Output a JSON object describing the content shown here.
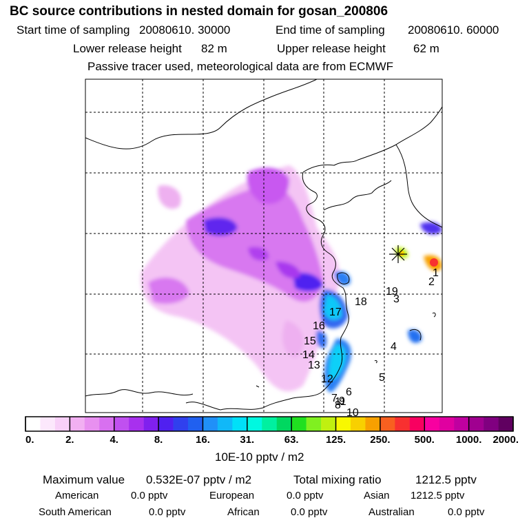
{
  "title": "BC  source contributions in nested domain for gosan_200806",
  "header": {
    "start_label": "Start time of sampling",
    "start_value": "20080610. 30000",
    "end_label": "End time of sampling",
    "end_value": "20080610. 60000",
    "lower_label": "Lower release height",
    "lower_value": "82 m",
    "upper_label": "Upper release height",
    "upper_value": "62 m",
    "tracer_note": "Passive tracer used, meteorological data are from ECMWF"
  },
  "map": {
    "receptor_marker": "star-icon",
    "region_labels": [
      "1",
      "2",
      "3",
      "4",
      "5",
      "6",
      "7",
      "8",
      "9",
      "10",
      "11",
      "12",
      "13",
      "14",
      "15",
      "16",
      "17",
      "18",
      "19"
    ]
  },
  "colorbar": {
    "colors": [
      "#ffffff",
      "#fce8fc",
      "#f8d0f8",
      "#f2b0f2",
      "#e890f0",
      "#d870f0",
      "#c050f0",
      "#a830ee",
      "#8020ee",
      "#5020f0",
      "#3040ee",
      "#2060f0",
      "#2090f8",
      "#10b8f8",
      "#00e0f8",
      "#00f8e0",
      "#00f0a0",
      "#00d860",
      "#20e020",
      "#80f020",
      "#c0f010",
      "#f8f800",
      "#f8d000",
      "#f8a000",
      "#f86020",
      "#f83030",
      "#f80060",
      "#f800a0",
      "#e000a0",
      "#c000a0",
      "#a00090",
      "#800080",
      "#600060"
    ],
    "tick_labels": [
      "0.",
      "2.",
      "4.",
      "8.",
      "16.",
      "31.",
      "63.",
      "125.",
      "250.",
      "500.",
      "1000.",
      "2000."
    ],
    "units": "10E-10 pptv / m2"
  },
  "footer": {
    "max_label": "Maximum value",
    "max_value": "0.532E-07 pptv / m2",
    "total_label": "Total mixing ratio",
    "total_value": "1212.5 pptv",
    "sources": [
      {
        "name": "American",
        "value": "0.0 pptv"
      },
      {
        "name": "European",
        "value": "0.0 pptv"
      },
      {
        "name": "Asian",
        "value": "1212.5 pptv"
      },
      {
        "name": "South American",
        "value": "0.0 pptv"
      },
      {
        "name": "African",
        "value": "0.0 pptv"
      },
      {
        "name": "Australian",
        "value": "0.0 pptv"
      }
    ]
  }
}
